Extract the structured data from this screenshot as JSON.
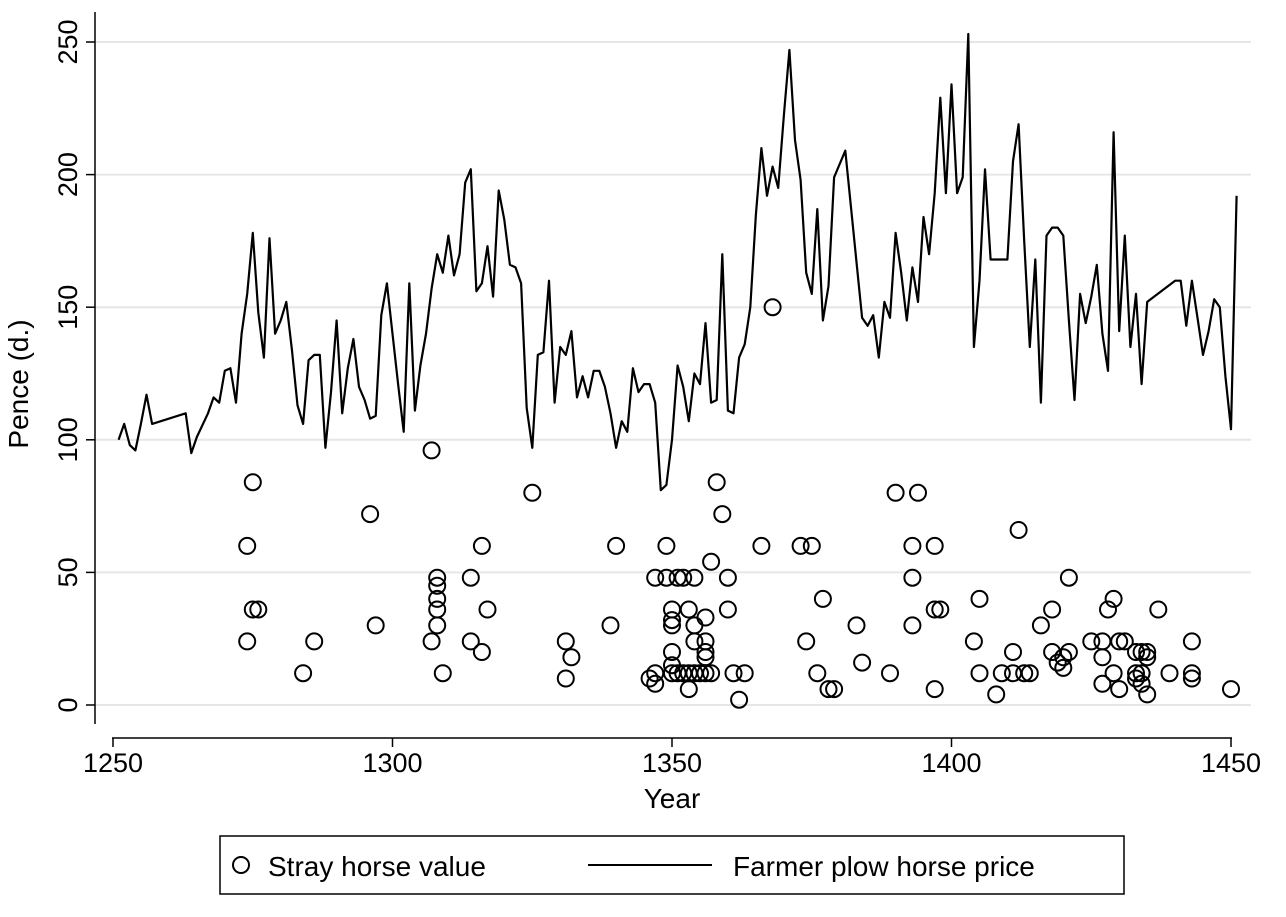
{
  "chart_data": {
    "type": "line+scatter",
    "xlabel": "Year",
    "ylabel": "Pence (d.)",
    "xlim": [
      1250,
      1450
    ],
    "ylim": [
      0,
      250
    ],
    "x_ticks": [
      1250,
      1300,
      1350,
      1400,
      1450
    ],
    "y_ticks": [
      0,
      50,
      100,
      150,
      200,
      250
    ],
    "grid": "horizontal",
    "legend_position": "bottom",
    "colors": {
      "line": "#000000",
      "markers": "#000000",
      "grid": "#e6e6e6"
    },
    "series": [
      {
        "name": "Farmer plow horse price",
        "kind": "line",
        "points": [
          [
            1251,
            100
          ],
          [
            1252,
            106
          ],
          [
            1253,
            98
          ],
          [
            1254,
            96
          ],
          [
            1255,
            106
          ],
          [
            1256,
            117
          ],
          [
            1257,
            106
          ],
          [
            1263,
            110
          ],
          [
            1264,
            95
          ],
          [
            1265,
            101
          ],
          [
            1267,
            110
          ],
          [
            1268,
            116
          ],
          [
            1269,
            114
          ],
          [
            1270,
            126
          ],
          [
            1271,
            127
          ],
          [
            1272,
            114
          ],
          [
            1273,
            140
          ],
          [
            1274,
            155
          ],
          [
            1275,
            178
          ],
          [
            1276,
            148
          ],
          [
            1277,
            131
          ],
          [
            1278,
            176
          ],
          [
            1279,
            140
          ],
          [
            1280,
            145
          ],
          [
            1281,
            152
          ],
          [
            1282,
            134
          ],
          [
            1283,
            113
          ],
          [
            1284,
            106
          ],
          [
            1285,
            130
          ],
          [
            1286,
            132
          ],
          [
            1287,
            132
          ],
          [
            1288,
            97
          ],
          [
            1289,
            118
          ],
          [
            1290,
            145
          ],
          [
            1291,
            110
          ],
          [
            1292,
            127
          ],
          [
            1293,
            138
          ],
          [
            1294,
            120
          ],
          [
            1295,
            115
          ],
          [
            1296,
            108
          ],
          [
            1297,
            109
          ],
          [
            1298,
            147
          ],
          [
            1299,
            159
          ],
          [
            1300,
            140
          ],
          [
            1301,
            121
          ],
          [
            1302,
            103
          ],
          [
            1303,
            159
          ],
          [
            1304,
            111
          ],
          [
            1305,
            128
          ],
          [
            1306,
            140
          ],
          [
            1307,
            157
          ],
          [
            1308,
            170
          ],
          [
            1309,
            163
          ],
          [
            1310,
            177
          ],
          [
            1311,
            162
          ],
          [
            1312,
            170
          ],
          [
            1313,
            197
          ],
          [
            1314,
            202
          ],
          [
            1315,
            156
          ],
          [
            1316,
            159
          ],
          [
            1317,
            173
          ],
          [
            1318,
            154
          ],
          [
            1319,
            194
          ],
          [
            1320,
            183
          ],
          [
            1321,
            166
          ],
          [
            1322,
            165
          ],
          [
            1323,
            159
          ],
          [
            1324,
            112
          ],
          [
            1325,
            97
          ],
          [
            1326,
            132
          ],
          [
            1327,
            133
          ],
          [
            1328,
            160
          ],
          [
            1329,
            114
          ],
          [
            1330,
            135
          ],
          [
            1331,
            132
          ],
          [
            1332,
            141
          ],
          [
            1333,
            116
          ],
          [
            1334,
            124
          ],
          [
            1335,
            116
          ],
          [
            1336,
            126
          ],
          [
            1337,
            126
          ],
          [
            1338,
            120
          ],
          [
            1339,
            110
          ],
          [
            1340,
            97
          ],
          [
            1341,
            107
          ],
          [
            1342,
            103
          ],
          [
            1343,
            127
          ],
          [
            1344,
            118
          ],
          [
            1345,
            121
          ],
          [
            1346,
            121
          ],
          [
            1347,
            114
          ],
          [
            1348,
            81
          ],
          [
            1349,
            83
          ],
          [
            1350,
            100
          ],
          [
            1351,
            128
          ],
          [
            1352,
            120
          ],
          [
            1353,
            107
          ],
          [
            1354,
            125
          ],
          [
            1355,
            121
          ],
          [
            1356,
            144
          ],
          [
            1357,
            114
          ],
          [
            1358,
            115
          ],
          [
            1359,
            170
          ],
          [
            1360,
            111
          ],
          [
            1361,
            110
          ],
          [
            1362,
            131
          ],
          [
            1363,
            136
          ],
          [
            1364,
            150
          ],
          [
            1365,
            185
          ],
          [
            1366,
            210
          ],
          [
            1367,
            192
          ],
          [
            1368,
            203
          ],
          [
            1369,
            195
          ],
          [
            1370,
            222
          ],
          [
            1371,
            247
          ],
          [
            1372,
            213
          ],
          [
            1373,
            198
          ],
          [
            1374,
            163
          ],
          [
            1375,
            155
          ],
          [
            1376,
            187
          ],
          [
            1377,
            145
          ],
          [
            1378,
            158
          ],
          [
            1379,
            199
          ],
          [
            1380,
            204
          ],
          [
            1381,
            209
          ],
          [
            1382,
            188
          ],
          [
            1383,
            167
          ],
          [
            1384,
            146
          ],
          [
            1385,
            143
          ],
          [
            1386,
            147
          ],
          [
            1387,
            131
          ],
          [
            1388,
            152
          ],
          [
            1389,
            146
          ],
          [
            1390,
            178
          ],
          [
            1391,
            163
          ],
          [
            1392,
            145
          ],
          [
            1393,
            165
          ],
          [
            1394,
            152
          ],
          [
            1395,
            184
          ],
          [
            1396,
            170
          ],
          [
            1397,
            193
          ],
          [
            1398,
            229
          ],
          [
            1399,
            193
          ],
          [
            1400,
            234
          ],
          [
            1401,
            193
          ],
          [
            1402,
            199
          ],
          [
            1403,
            253
          ],
          [
            1404,
            135
          ],
          [
            1405,
            160
          ],
          [
            1406,
            202
          ],
          [
            1407,
            168
          ],
          [
            1410,
            168
          ],
          [
            1411,
            205
          ],
          [
            1412,
            219
          ],
          [
            1413,
            175
          ],
          [
            1414,
            135
          ],
          [
            1415,
            168
          ],
          [
            1416,
            114
          ],
          [
            1417,
            177
          ],
          [
            1418,
            180
          ],
          [
            1419,
            180
          ],
          [
            1420,
            177
          ],
          [
            1421,
            145
          ],
          [
            1422,
            115
          ],
          [
            1423,
            155
          ],
          [
            1424,
            144
          ],
          [
            1425,
            154
          ],
          [
            1426,
            166
          ],
          [
            1427,
            140
          ],
          [
            1428,
            126
          ],
          [
            1429,
            216
          ],
          [
            1430,
            141
          ],
          [
            1431,
            177
          ],
          [
            1432,
            135
          ],
          [
            1433,
            155
          ],
          [
            1434,
            121
          ],
          [
            1435,
            152
          ],
          [
            1440,
            160
          ],
          [
            1441,
            160
          ],
          [
            1442,
            143
          ],
          [
            1443,
            160
          ],
          [
            1444,
            146
          ],
          [
            1445,
            132
          ],
          [
            1446,
            141
          ],
          [
            1447,
            153
          ],
          [
            1448,
            150
          ],
          [
            1449,
            124
          ],
          [
            1450,
            104
          ],
          [
            1451,
            192
          ]
        ]
      },
      {
        "name": "Stray horse value",
        "kind": "scatter",
        "marker": "hollow-circle",
        "points": [
          [
            1274,
            60
          ],
          [
            1274,
            24
          ],
          [
            1275,
            84
          ],
          [
            1275,
            36
          ],
          [
            1276,
            36
          ],
          [
            1284,
            12
          ],
          [
            1286,
            24
          ],
          [
            1296,
            72
          ],
          [
            1297,
            30
          ],
          [
            1307,
            96
          ],
          [
            1307,
            24
          ],
          [
            1308,
            48
          ],
          [
            1308,
            45
          ],
          [
            1308,
            40
          ],
          [
            1308,
            36
          ],
          [
            1308,
            30
          ],
          [
            1309,
            12
          ],
          [
            1314,
            48
          ],
          [
            1314,
            24
          ],
          [
            1316,
            60
          ],
          [
            1316,
            20
          ],
          [
            1317,
            36
          ],
          [
            1325,
            80
          ],
          [
            1331,
            24
          ],
          [
            1331,
            10
          ],
          [
            1332,
            18
          ],
          [
            1339,
            30
          ],
          [
            1340,
            60
          ],
          [
            1346,
            10
          ],
          [
            1347,
            48
          ],
          [
            1347,
            12
          ],
          [
            1347,
            8
          ],
          [
            1349,
            60
          ],
          [
            1349,
            48
          ],
          [
            1350,
            36
          ],
          [
            1350,
            32
          ],
          [
            1350,
            30
          ],
          [
            1350,
            20
          ],
          [
            1350,
            15
          ],
          [
            1350,
            12
          ],
          [
            1351,
            48
          ],
          [
            1351,
            12
          ],
          [
            1352,
            48
          ],
          [
            1352,
            12
          ],
          [
            1353,
            36
          ],
          [
            1353,
            12
          ],
          [
            1353,
            6
          ],
          [
            1354,
            48
          ],
          [
            1354,
            30
          ],
          [
            1354,
            24
          ],
          [
            1354,
            12
          ],
          [
            1355,
            12
          ],
          [
            1356,
            33
          ],
          [
            1356,
            24
          ],
          [
            1356,
            20
          ],
          [
            1356,
            18
          ],
          [
            1356,
            12
          ],
          [
            1357,
            54
          ],
          [
            1357,
            12
          ],
          [
            1358,
            84
          ],
          [
            1359,
            72
          ],
          [
            1360,
            48
          ],
          [
            1360,
            36
          ],
          [
            1361,
            12
          ],
          [
            1362,
            2
          ],
          [
            1363,
            12
          ],
          [
            1366,
            60
          ],
          [
            1368,
            150
          ],
          [
            1373,
            60
          ],
          [
            1374,
            24
          ],
          [
            1375,
            60
          ],
          [
            1376,
            12
          ],
          [
            1377,
            40
          ],
          [
            1378,
            6
          ],
          [
            1379,
            6
          ],
          [
            1383,
            30
          ],
          [
            1384,
            16
          ],
          [
            1389,
            12
          ],
          [
            1390,
            80
          ],
          [
            1393,
            60
          ],
          [
            1393,
            48
          ],
          [
            1393,
            30
          ],
          [
            1394,
            80
          ],
          [
            1397,
            60
          ],
          [
            1397,
            36
          ],
          [
            1397,
            6
          ],
          [
            1398,
            36
          ],
          [
            1404,
            24
          ],
          [
            1405,
            40
          ],
          [
            1405,
            12
          ],
          [
            1408,
            4
          ],
          [
            1409,
            12
          ],
          [
            1411,
            20
          ],
          [
            1411,
            12
          ],
          [
            1412,
            66
          ],
          [
            1413,
            12
          ],
          [
            1414,
            12
          ],
          [
            1416,
            30
          ],
          [
            1418,
            36
          ],
          [
            1418,
            20
          ],
          [
            1419,
            16
          ],
          [
            1420,
            18
          ],
          [
            1420,
            14
          ],
          [
            1421,
            48
          ],
          [
            1421,
            20
          ],
          [
            1425,
            24
          ],
          [
            1427,
            24
          ],
          [
            1427,
            18
          ],
          [
            1427,
            8
          ],
          [
            1428,
            36
          ],
          [
            1429,
            40
          ],
          [
            1429,
            12
          ],
          [
            1430,
            24
          ],
          [
            1430,
            6
          ],
          [
            1431,
            24
          ],
          [
            1433,
            20
          ],
          [
            1433,
            12
          ],
          [
            1433,
            10
          ],
          [
            1434,
            20
          ],
          [
            1434,
            12
          ],
          [
            1434,
            8
          ],
          [
            1435,
            20
          ],
          [
            1435,
            18
          ],
          [
            1435,
            4
          ],
          [
            1437,
            36
          ],
          [
            1439,
            12
          ],
          [
            1443,
            24
          ],
          [
            1443,
            12
          ],
          [
            1443,
            10
          ],
          [
            1450,
            6
          ]
        ]
      }
    ]
  },
  "legend": {
    "items": [
      {
        "label": "Stray horse value",
        "symbol": "hollow-circle"
      },
      {
        "label": "Farmer plow horse price",
        "symbol": "line"
      }
    ]
  }
}
